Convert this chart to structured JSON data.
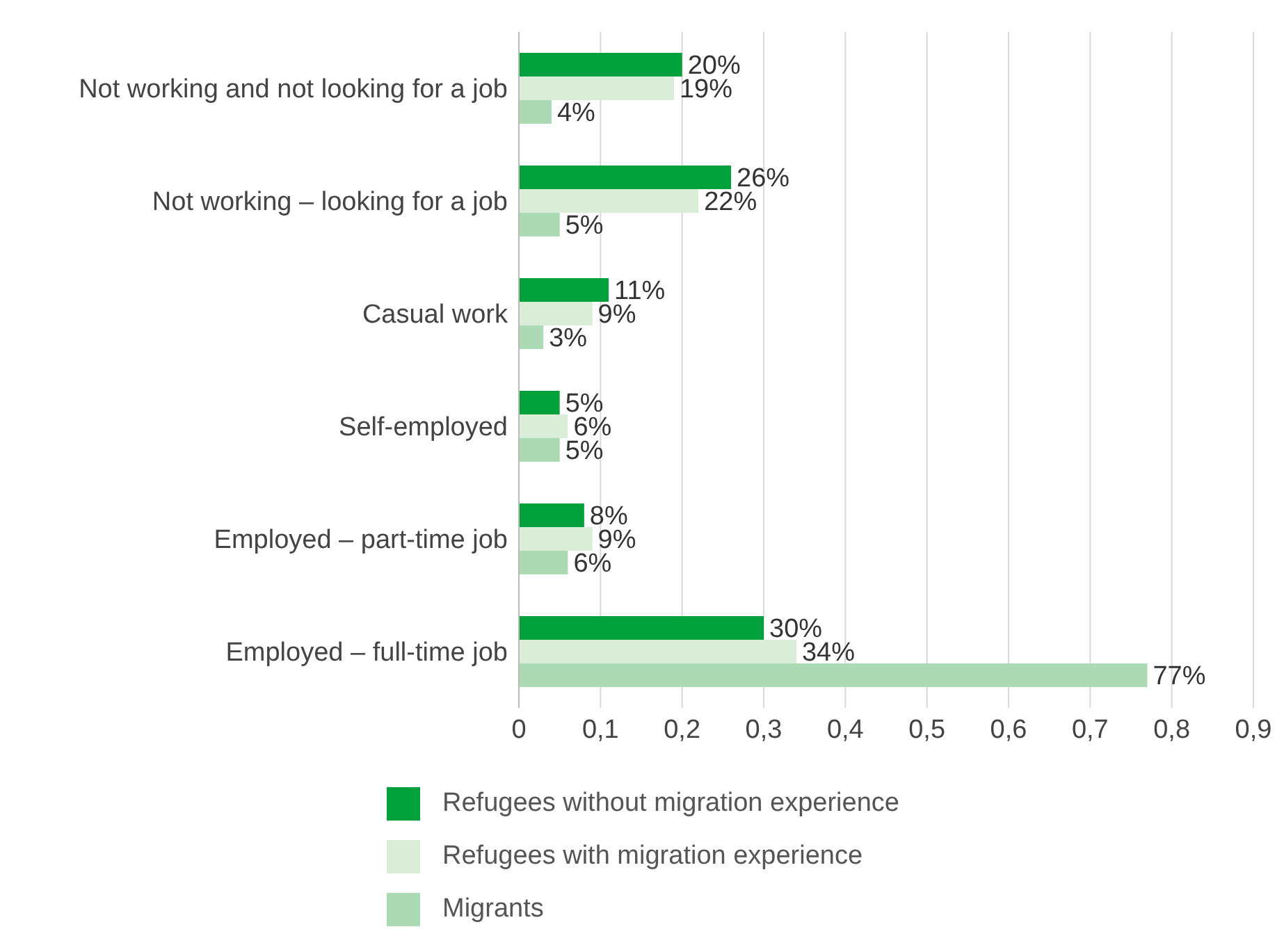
{
  "chart_data": {
    "type": "bar",
    "orientation": "horizontal",
    "categories": [
      "Not working and not looking for a job",
      "Not working – looking for a job",
      "Casual work",
      "Self-employed",
      "Employed – part-time job",
      "Employed – full-time job"
    ],
    "series": [
      {
        "name": "Refugees without migration experience",
        "color": "#00a03c",
        "values": [
          0.2,
          0.26,
          0.11,
          0.05,
          0.08,
          0.3
        ],
        "value_labels": [
          "20%",
          "26%",
          "11%",
          "5%",
          "8%",
          "30%"
        ]
      },
      {
        "name": "Refugees with migration experience",
        "color": "#d9edd9",
        "values": [
          0.19,
          0.22,
          0.09,
          0.06,
          0.09,
          0.34
        ],
        "value_labels": [
          "19%",
          "22%",
          "9%",
          "6%",
          "9%",
          "34%"
        ]
      },
      {
        "name": "Migrants",
        "color": "#acdab4",
        "values": [
          0.04,
          0.05,
          0.03,
          0.05,
          0.06,
          0.77
        ],
        "value_labels": [
          "4%",
          "5%",
          "3%",
          "5%",
          "6%",
          "77%"
        ]
      }
    ],
    "xlim": [
      0,
      0.9
    ],
    "xticks": [
      0,
      {
        "value": 0.1,
        "label": "0,1"
      },
      {
        "value": 0.2,
        "label": "0,2"
      },
      {
        "value": 0.3,
        "label": "0,3"
      },
      {
        "value": 0.4,
        "label": "0,4"
      },
      {
        "value": 0.5,
        "label": "0,5"
      },
      {
        "value": 0.6,
        "label": "0,6"
      },
      {
        "value": 0.7,
        "label": "0,7"
      },
      {
        "value": 0.8,
        "label": "0,8"
      },
      {
        "value": 0.9,
        "label": "0,9"
      }
    ],
    "grid": "x",
    "legend": "bottom"
  }
}
